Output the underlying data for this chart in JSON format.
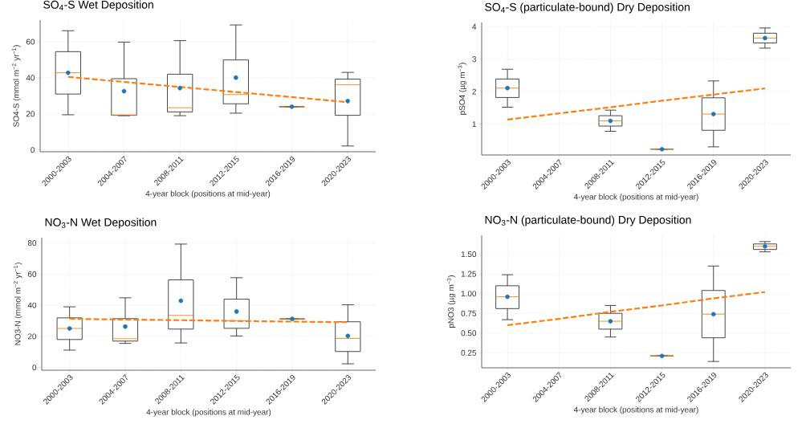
{
  "chart_data": [
    {
      "type": "box",
      "title": "SO$_{4}$-S Wet Deposition",
      "xlabel": "4-year block (positions at mid-year)",
      "ylabel": "SO4-S (mmol m$^{−2}$ yr$^{−1}$)",
      "categories": [
        "2000-2003",
        "2004-2007",
        "2008-2011",
        "2012-2015",
        "2016-2019",
        "2020-2023"
      ],
      "ylim": [
        -1,
        72
      ],
      "yticks": [
        0,
        20,
        40,
        60
      ],
      "grid": true,
      "series": [
        {
          "type": "box",
          "color": "#333333",
          "boxes": [
            {
              "low": 19.5,
              "q1": 31,
              "median": 42.8,
              "q3": 54.5,
              "high": 66.1,
              "mean": 42.8
            },
            {
              "low": 19,
              "q1": 19.2,
              "median": 19.4,
              "q3": 39.5,
              "high": 59.8,
              "mean": 32.6
            },
            {
              "low": 19,
              "q1": 21.1,
              "median": 23.4,
              "q3": 42,
              "high": 60.6,
              "mean": 34.3
            },
            {
              "low": 20.4,
              "q1": 25.6,
              "median": 30.7,
              "q3": 49.9,
              "high": 69.3,
              "mean": 40.1
            },
            {
              "low": 24,
              "q1": 24,
              "median": 24,
              "q3": 24,
              "high": 24,
              "mean": 24
            },
            {
              "low": 2.2,
              "q1": 19.2,
              "median": 36.1,
              "q3": 39.3,
              "high": 43,
              "mean": 27.1
            }
          ]
        },
        {
          "type": "line",
          "color": "#ff7f0e",
          "line_style": "dashed",
          "values": [
            40.5,
            37.7,
            34.9,
            32.1,
            29.3,
            26.5
          ]
        }
      ]
    },
    {
      "type": "box",
      "title": "SO$_{4}$-S (particulate-bound) Dry Deposition",
      "xlabel": "4-year block (positions at mid-year)",
      "ylabel": "pSO4 (µg m$^{−3}$)",
      "categories": [
        "2000-2003",
        "2004-2007",
        "2008-2011",
        "2012-2015",
        "2016-2019",
        "2020-2023"
      ],
      "ylim": [
        0.05,
        4.13
      ],
      "yticks": [
        1,
        2,
        3,
        4
      ],
      "grid": true,
      "series": [
        {
          "type": "box",
          "color": "#333333",
          "boxes": [
            {
              "low": 1.52,
              "q1": 1.82,
              "median": 2.11,
              "q3": 2.39,
              "high": 2.69,
              "mean": 2.11
            },
            null,
            {
              "low": 0.78,
              "q1": 0.94,
              "median": 1.1,
              "q3": 1.26,
              "high": 1.43,
              "mean": 1.1
            },
            {
              "low": 0.23,
              "q1": 0.23,
              "median": 0.23,
              "q3": 0.23,
              "high": 0.23,
              "mean": 0.23
            },
            {
              "low": 0.3,
              "q1": 0.81,
              "median": 1.31,
              "q3": 1.81,
              "high": 2.33,
              "mean": 1.31
            },
            {
              "low": 3.34,
              "q1": 3.5,
              "median": 3.65,
              "q3": 3.8,
              "high": 3.96,
              "mean": 3.65
            }
          ]
        },
        {
          "type": "line",
          "color": "#ff7f0e",
          "line_style": "dashed",
          "values": [
            1.14,
            1.33,
            1.52,
            1.72,
            1.91,
            2.1
          ]
        }
      ]
    },
    {
      "type": "box",
      "title": "NO$_{3}$-N Wet Deposition",
      "xlabel": "4-year block (positions at mid-year)",
      "ylabel": "NO3-N (mmol m$^{−2}$ yr$^{−1}$)",
      "categories": [
        "2000-2003",
        "2004-2007",
        "2008-2011",
        "2012-2015",
        "2016-2019",
        "2020-2023"
      ],
      "ylim": [
        -1.7,
        83.4
      ],
      "yticks": [
        0,
        20,
        40,
        60,
        80
      ],
      "grid": true,
      "series": [
        {
          "type": "box",
          "color": "#333333",
          "boxes": [
            {
              "low": 11.2,
              "q1": 18,
              "median": 25.1,
              "q3": 31.9,
              "high": 39,
              "mean": 25.1
            },
            {
              "low": 15.5,
              "q1": 17,
              "median": 18.5,
              "q3": 31.4,
              "high": 44.8,
              "mean": 26.3
            },
            {
              "low": 15.8,
              "q1": 24.7,
              "median": 33.5,
              "q3": 56.3,
              "high": 79.3,
              "mean": 42.9
            },
            {
              "low": 20.3,
              "q1": 25.2,
              "median": 30,
              "q3": 43.9,
              "high": 57.7,
              "mean": 36
            },
            {
              "low": 31.2,
              "q1": 31.2,
              "median": 31.2,
              "q3": 31.2,
              "high": 31.2,
              "mean": 31.2
            },
            {
              "low": 2.4,
              "q1": 10.3,
              "median": 18.7,
              "q3": 29.4,
              "high": 40.3,
              "mean": 20.3
            }
          ]
        },
        {
          "type": "line",
          "color": "#ff7f0e",
          "line_style": "dashed",
          "values": [
            31.3,
            30.8,
            30.4,
            29.9,
            29.5,
            29.1
          ]
        }
      ]
    },
    {
      "type": "box",
      "title": "NO$_{3}$-N (particulate-bound) Dry Deposition",
      "xlabel": "4-year block (positions at mid-year)",
      "ylabel": "pNO3 (µg m$^{−3}$)",
      "categories": [
        "2000-2003",
        "2004-2007",
        "2008-2011",
        "2012-2015",
        "2016-2019",
        "2020-2023"
      ],
      "ylim": [
        0.06,
        1.74
      ],
      "yticks": [
        {
          "value": 0.25,
          "label": "0.25"
        },
        {
          "value": 0.5,
          "label": "0.50"
        },
        {
          "value": 0.75,
          "label": "0.75"
        },
        {
          "value": 1.0,
          "label": "1.00"
        },
        {
          "value": 1.25,
          "label": "1.25"
        },
        {
          "value": 1.5,
          "label": "1.50"
        }
      ],
      "grid": true,
      "series": [
        {
          "type": "box",
          "color": "#333333",
          "boxes": [
            {
              "low": 0.67,
              "q1": 0.81,
              "median": 0.96,
              "q3": 1.1,
              "high": 1.24,
              "mean": 0.96
            },
            null,
            {
              "low": 0.45,
              "q1": 0.55,
              "median": 0.65,
              "q3": 0.75,
              "high": 0.85,
              "mean": 0.65
            },
            {
              "low": 0.21,
              "q1": 0.21,
              "median": 0.21,
              "q3": 0.21,
              "high": 0.21,
              "mean": 0.21
            },
            {
              "low": 0.14,
              "q1": 0.44,
              "median": 0.74,
              "q3": 1.04,
              "high": 1.35,
              "mean": 0.74
            },
            {
              "low": 1.53,
              "q1": 1.56,
              "median": 1.6,
              "q3": 1.63,
              "high": 1.66,
              "mean": 1.6
            }
          ]
        },
        {
          "type": "line",
          "color": "#ff7f0e",
          "line_style": "dashed",
          "values": [
            0.6,
            0.68,
            0.77,
            0.85,
            0.94,
            1.02
          ]
        }
      ]
    }
  ]
}
